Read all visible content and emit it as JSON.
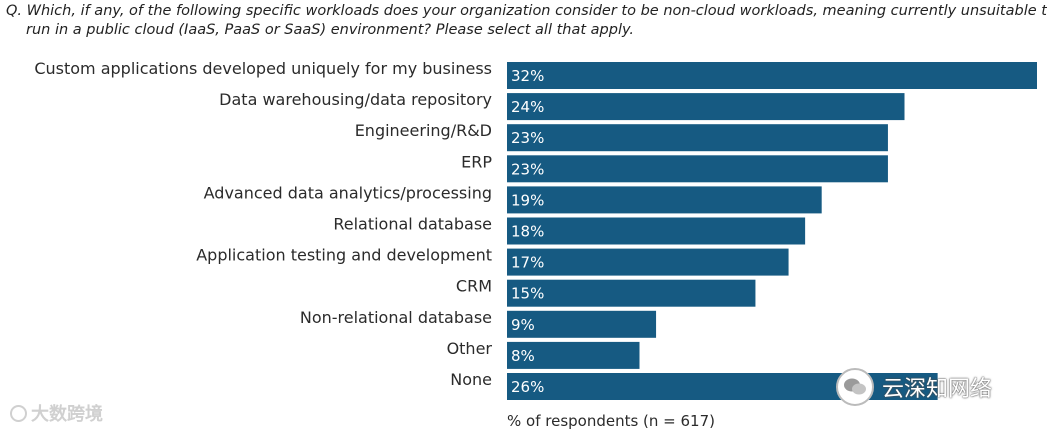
{
  "question_text": "Q. Which, if any, of the following specific workloads does your organization consider to be non-cloud workloads, meaning currently unsuitable to run in a public cloud (IaaS, PaaS or SaaS) environment? Please select all that apply.",
  "colors": {
    "bar": "#165a82",
    "text": "#2b2b2b"
  },
  "watermark": {
    "left_text": "大数跨境",
    "right_text": "云深知网络"
  },
  "chart_data": {
    "type": "bar",
    "orientation": "horizontal",
    "title": "",
    "categories": [
      "Custom applications developed uniquely for my business",
      "Data warehousing/data repository",
      "Engineering/R&D",
      "ERP",
      "Advanced data analytics/processing",
      "Relational database",
      "Application testing and development",
      "CRM",
      "Non-relational database",
      "Other",
      "None"
    ],
    "values": [
      32,
      24,
      23,
      23,
      19,
      18,
      17,
      15,
      9,
      8,
      26
    ],
    "value_labels": [
      "32%",
      "24%",
      "23%",
      "23%",
      "19%",
      "18%",
      "17%",
      "15%",
      "9%",
      "8%",
      "26%"
    ],
    "xlabel": "% of respondents (n = 617)",
    "ylabel": "",
    "xlim": [
      0,
      32
    ]
  }
}
